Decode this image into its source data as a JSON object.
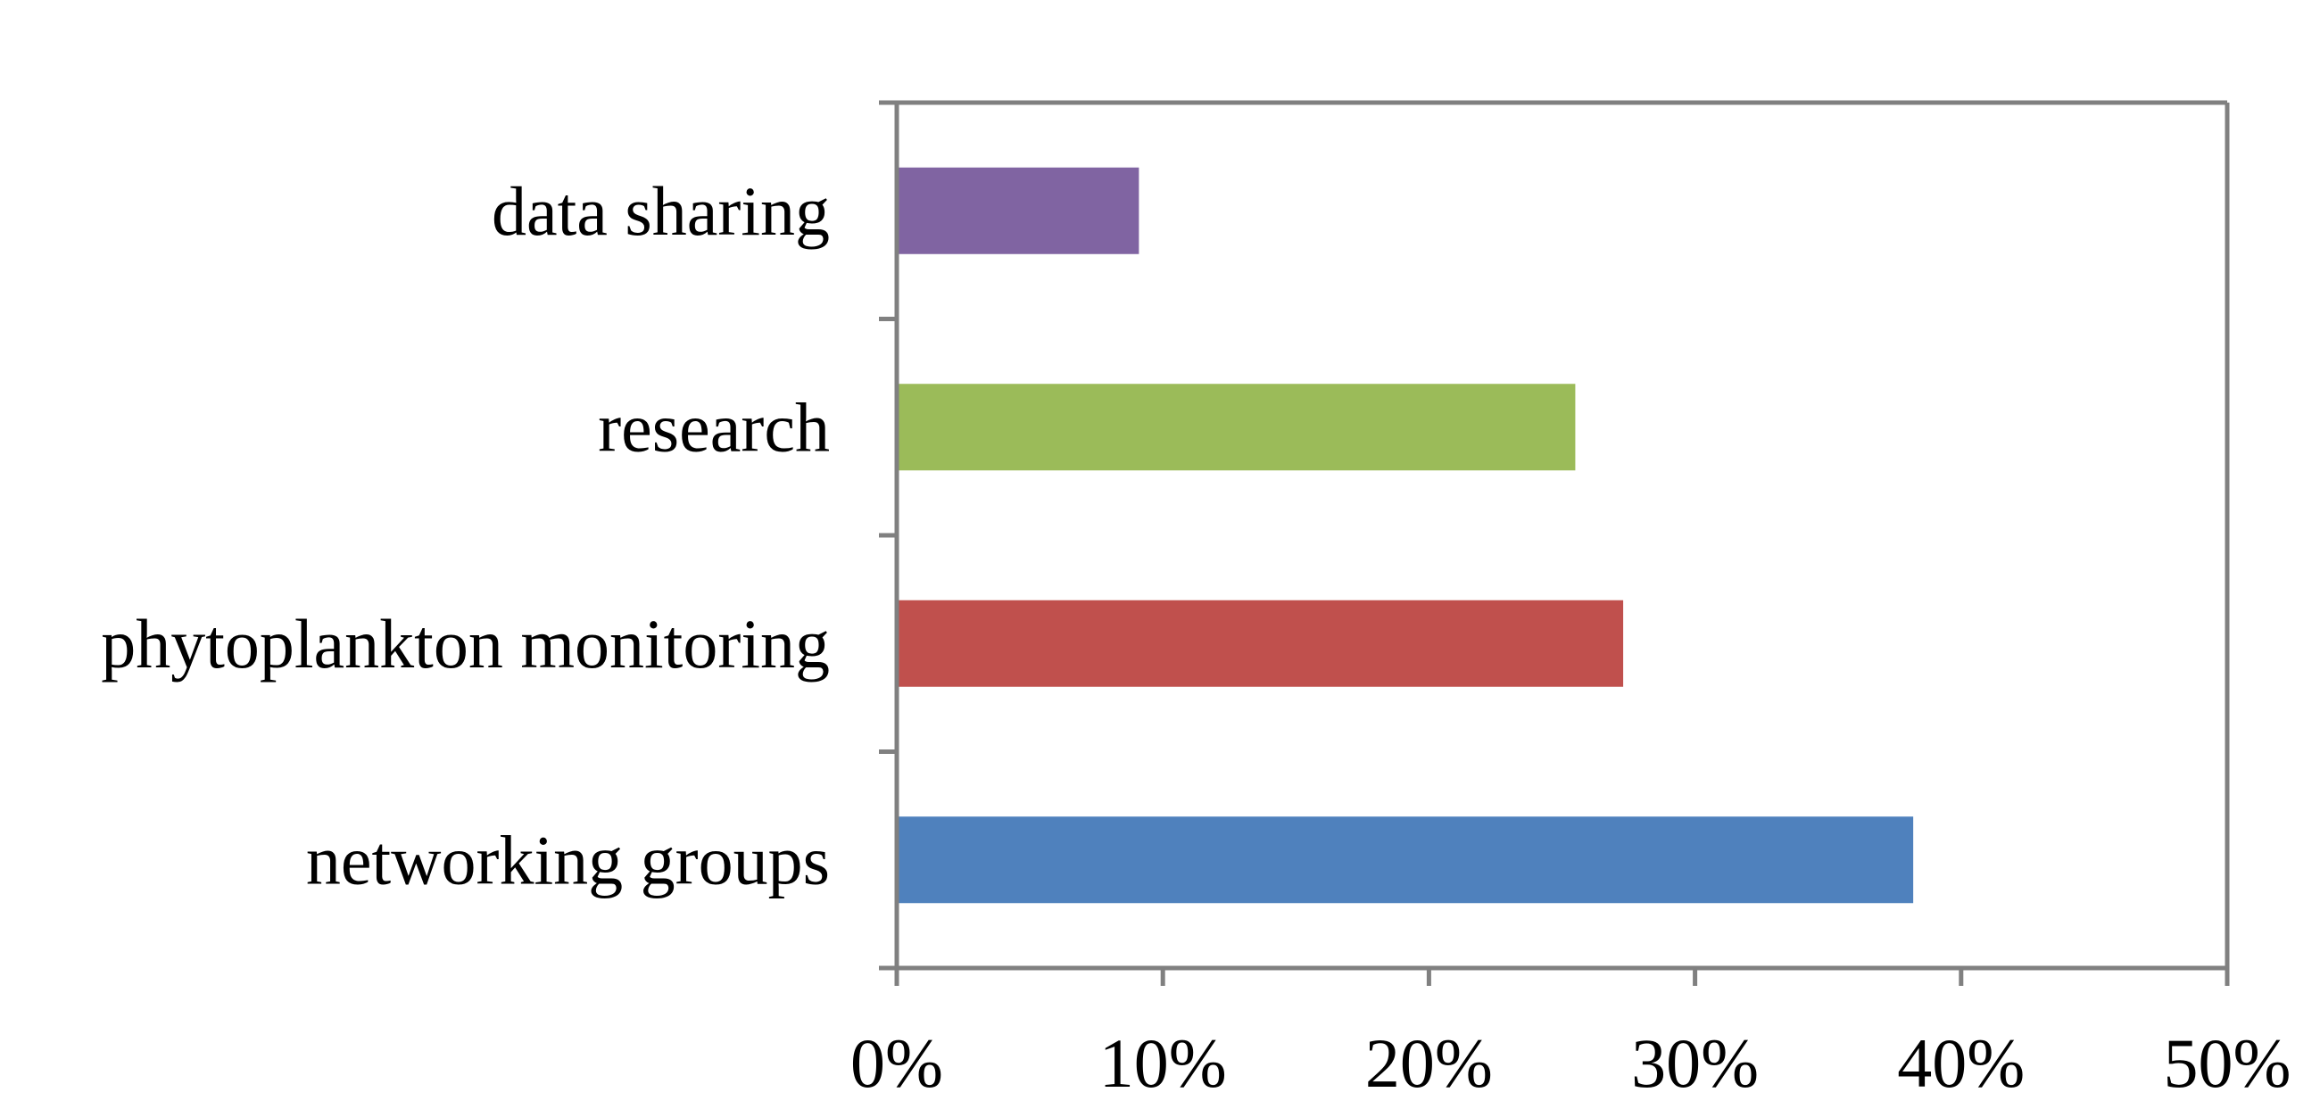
{
  "chart_data": {
    "type": "bar",
    "orientation": "horizontal",
    "categories": [
      "networking groups",
      "phytoplankton monitoring",
      "research",
      "data sharing"
    ],
    "values": [
      38.2,
      27.3,
      25.5,
      9.1
    ],
    "colors": [
      "#4F81BD",
      "#C0504D",
      "#9BBB59",
      "#8064A2"
    ],
    "xlim": [
      0,
      50
    ],
    "x_ticks": [
      0,
      10,
      20,
      30,
      40,
      50
    ],
    "x_tick_labels": [
      "0%",
      "10%",
      "20%",
      "30%",
      "40%",
      "50%"
    ],
    "title": "",
    "xlabel": "",
    "ylabel": "",
    "grid": false,
    "legend": "none"
  }
}
